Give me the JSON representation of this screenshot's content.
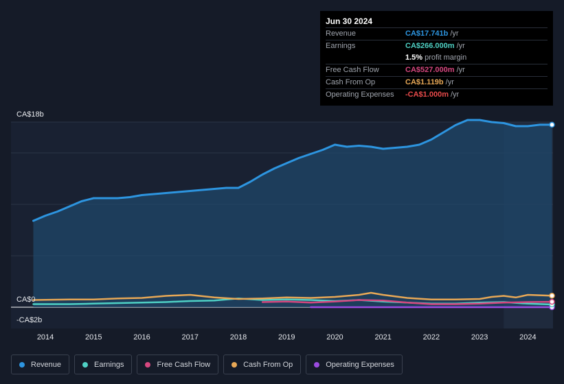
{
  "tooltip": {
    "date": "Jun 30 2024",
    "rows": [
      {
        "label": "Revenue",
        "value": "CA$17.741b",
        "unit": "/yr",
        "color": "#2d95e0"
      },
      {
        "label": "Earnings",
        "value": "CA$266.000m",
        "unit": "/yr",
        "color": "#4fd1c5"
      },
      {
        "label": "",
        "value": "1.5%",
        "unit": "profit margin",
        "color": "#ffffff"
      },
      {
        "label": "Free Cash Flow",
        "value": "CA$527.000m",
        "unit": "/yr",
        "color": "#d6477f"
      },
      {
        "label": "Cash From Op",
        "value": "CA$1.119b",
        "unit": "/yr",
        "color": "#e8a856"
      },
      {
        "label": "Operating Expenses",
        "value": "-CA$1.000m",
        "unit": "/yr",
        "color": "#ea4b4b"
      }
    ]
  },
  "legend": [
    {
      "label": "Revenue",
      "color": "#2d95e0"
    },
    {
      "label": "Earnings",
      "color": "#4fd1c5"
    },
    {
      "label": "Free Cash Flow",
      "color": "#d6477f"
    },
    {
      "label": "Cash From Op",
      "color": "#e8a856"
    },
    {
      "label": "Operating Expenses",
      "color": "#9b4be0"
    }
  ],
  "chart_data": {
    "type": "area",
    "title": "",
    "xlabel": "",
    "ylabel": "",
    "ylim": [
      -2,
      18
    ],
    "y_tick_labels": [
      {
        "value": 18,
        "label": "CA$18b"
      },
      {
        "value": 0,
        "label": "CA$0"
      },
      {
        "value": -2,
        "label": "-CA$2b"
      }
    ],
    "x_tick_labels": [
      "2014",
      "2015",
      "2016",
      "2017",
      "2018",
      "2019",
      "2020",
      "2021",
      "2022",
      "2023",
      "2024"
    ],
    "x_range": [
      2013.75,
      2024.5
    ],
    "grid": true,
    "legend_position": "bottom",
    "highlight_period_start": 2023.5,
    "series": [
      {
        "name": "Revenue",
        "color": "#2d95e0",
        "x": [
          2013.75,
          2014.0,
          2014.25,
          2014.5,
          2014.75,
          2015.0,
          2015.25,
          2015.5,
          2015.75,
          2016.0,
          2016.25,
          2016.5,
          2016.75,
          2017.0,
          2017.25,
          2017.5,
          2017.75,
          2018.0,
          2018.25,
          2018.5,
          2018.75,
          2019.0,
          2019.25,
          2019.5,
          2019.75,
          2020.0,
          2020.25,
          2020.5,
          2020.75,
          2021.0,
          2021.25,
          2021.5,
          2021.75,
          2022.0,
          2022.25,
          2022.5,
          2022.75,
          2023.0,
          2023.25,
          2023.5,
          2023.75,
          2024.0,
          2024.25,
          2024.5
        ],
        "y": [
          8.4,
          8.9,
          9.3,
          9.8,
          10.3,
          10.6,
          10.6,
          10.6,
          10.7,
          10.9,
          11.0,
          11.1,
          11.2,
          11.3,
          11.4,
          11.5,
          11.6,
          11.6,
          12.2,
          12.9,
          13.5,
          14.0,
          14.5,
          14.9,
          15.3,
          15.8,
          15.6,
          15.7,
          15.6,
          15.4,
          15.5,
          15.6,
          15.8,
          16.3,
          17.0,
          17.7,
          18.2,
          18.2,
          18.0,
          17.9,
          17.6,
          17.6,
          17.741,
          17.741
        ]
      },
      {
        "name": "Earnings",
        "color": "#4fd1c5",
        "x": [
          2013.75,
          2014.5,
          2015.0,
          2015.5,
          2016.0,
          2016.5,
          2017.0,
          2017.5,
          2018.0,
          2018.5,
          2019.0,
          2019.5,
          2020.0,
          2020.5,
          2021.0,
          2021.5,
          2022.0,
          2022.5,
          2023.0,
          2023.5,
          2024.0,
          2024.5
        ],
        "y": [
          0.3,
          0.3,
          0.35,
          0.4,
          0.45,
          0.5,
          0.6,
          0.65,
          0.85,
          0.7,
          0.75,
          0.7,
          0.6,
          0.7,
          0.55,
          0.45,
          0.35,
          0.35,
          0.45,
          0.5,
          0.35,
          0.266
        ]
      },
      {
        "name": "Free Cash Flow",
        "color": "#d6477f",
        "x": [
          2018.5,
          2019.0,
          2019.5,
          2020.0,
          2020.5,
          2021.0,
          2021.5,
          2022.0,
          2022.5,
          2023.0,
          2023.5,
          2024.0,
          2024.5
        ],
        "y": [
          0.5,
          0.55,
          0.45,
          0.55,
          0.7,
          0.65,
          0.45,
          0.3,
          0.3,
          0.35,
          0.45,
          0.5,
          0.527
        ]
      },
      {
        "name": "Cash From Op",
        "color": "#e8a856",
        "x": [
          2013.75,
          2014.5,
          2015.0,
          2015.5,
          2016.0,
          2016.5,
          2017.0,
          2017.5,
          2018.0,
          2018.5,
          2019.0,
          2019.5,
          2020.0,
          2020.5,
          2020.75,
          2021.0,
          2021.5,
          2022.0,
          2022.5,
          2023.0,
          2023.25,
          2023.5,
          2023.75,
          2024.0,
          2024.5
        ],
        "y": [
          0.7,
          0.75,
          0.75,
          0.85,
          0.9,
          1.1,
          1.2,
          0.95,
          0.8,
          0.85,
          0.95,
          0.9,
          1.0,
          1.2,
          1.4,
          1.2,
          0.9,
          0.75,
          0.75,
          0.8,
          1.0,
          1.1,
          0.95,
          1.2,
          1.119
        ]
      },
      {
        "name": "Operating Expenses",
        "color": "#9b4be0",
        "x": [
          2019.5,
          2020.0,
          2021.0,
          2022.0,
          2023.0,
          2024.0,
          2024.5
        ],
        "y": [
          -0.001,
          -0.001,
          -0.001,
          -0.001,
          -0.001,
          -0.001,
          -0.001
        ]
      }
    ]
  }
}
